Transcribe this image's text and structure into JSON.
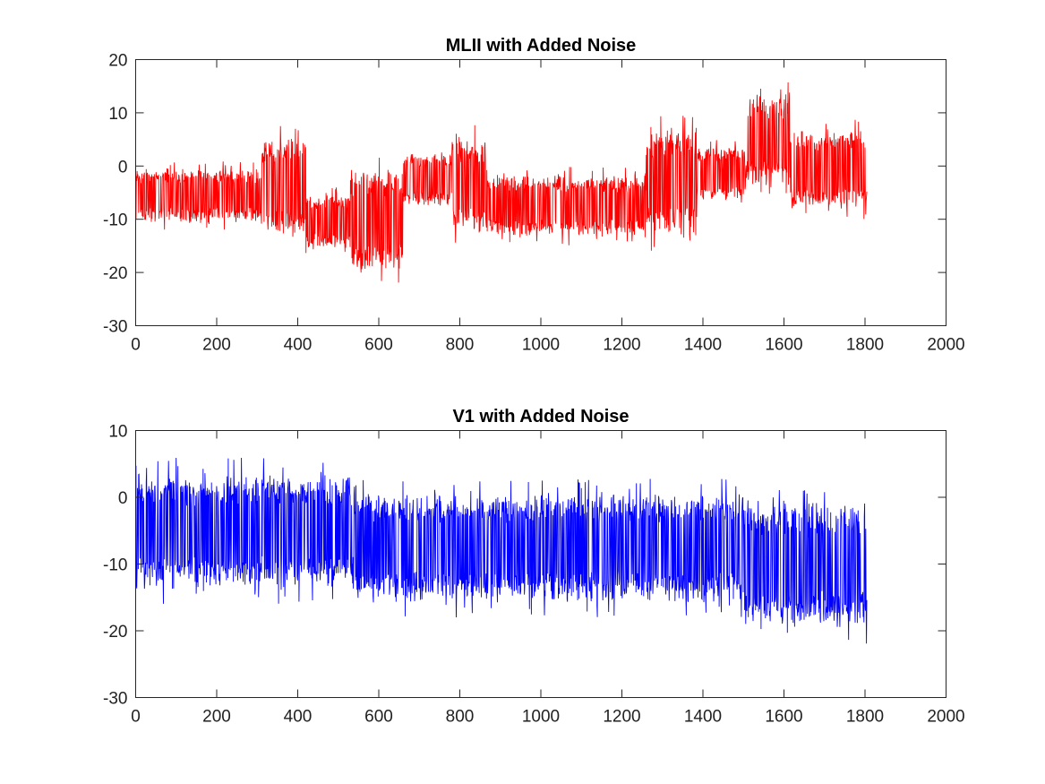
{
  "chart_data": [
    {
      "type": "line",
      "title": "MLII with Added Noise",
      "xlabel": "",
      "ylabel": "",
      "xlim": [
        0,
        2000
      ],
      "ylim": [
        -30,
        20
      ],
      "x_ticks": [
        0,
        200,
        400,
        600,
        800,
        1000,
        1200,
        1400,
        1600,
        1800,
        2000
      ],
      "y_ticks": [
        -30,
        -20,
        -10,
        0,
        10,
        20
      ],
      "grid": false,
      "legend": "none",
      "x_range": [
        0,
        1805
      ],
      "series": [
        {
          "color": "#ff0000",
          "envelope": [
            {
              "x_start": 0,
              "x_end": 310,
              "y_min": -12,
              "y_max": 1
            },
            {
              "x_start": 310,
              "x_end": 420,
              "y_min": -16,
              "y_max": 8
            },
            {
              "x_start": 420,
              "x_end": 530,
              "y_min": -17,
              "y_max": -4
            },
            {
              "x_start": 530,
              "x_end": 660,
              "y_min": -22,
              "y_max": 2
            },
            {
              "x_start": 660,
              "x_end": 780,
              "y_min": -9,
              "y_max": 4
            },
            {
              "x_start": 780,
              "x_end": 865,
              "y_min": -15,
              "y_max": 8
            },
            {
              "x_start": 865,
              "x_end": 1260,
              "y_min": -15,
              "y_max": 0
            },
            {
              "x_start": 1260,
              "x_end": 1385,
              "y_min": -16,
              "y_max": 10
            },
            {
              "x_start": 1385,
              "x_end": 1505,
              "y_min": -8,
              "y_max": 5
            },
            {
              "x_start": 1505,
              "x_end": 1615,
              "y_min": -6,
              "y_max": 16
            },
            {
              "x_start": 1615,
              "x_end": 1805,
              "y_min": -10,
              "y_max": 9
            }
          ]
        }
      ]
    },
    {
      "type": "line",
      "title": "V1 with Added Noise",
      "xlabel": "",
      "ylabel": "",
      "xlim": [
        0,
        2000
      ],
      "ylim": [
        -30,
        10
      ],
      "x_ticks": [
        0,
        200,
        400,
        600,
        800,
        1000,
        1200,
        1400,
        1600,
        1800,
        2000
      ],
      "y_ticks": [
        -30,
        -20,
        -10,
        0,
        10
      ],
      "grid": false,
      "legend": "none",
      "x_range": [
        0,
        1805
      ],
      "series": [
        {
          "color": "#0000ff",
          "envelope": [
            {
              "x_start": 0,
              "x_end": 540,
              "y_min": -16,
              "y_max": 6
            },
            {
              "x_start": 540,
              "x_end": 1500,
              "y_min": -18,
              "y_max": 3
            },
            {
              "x_start": 1500,
              "x_end": 1805,
              "y_min": -22,
              "y_max": 2
            }
          ]
        }
      ]
    }
  ]
}
